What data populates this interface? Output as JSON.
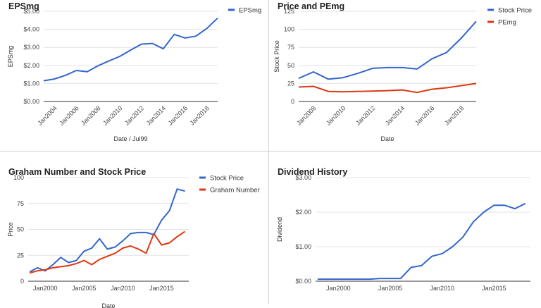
{
  "chart_data": [
    {
      "type": "line",
      "title": "EPSmg",
      "xlabel": "Date / Jul99",
      "ylabel": "EPSmg",
      "x": [
        2003,
        2004,
        2005,
        2006,
        2007,
        2008,
        2009,
        2010,
        2011,
        2012,
        2013,
        2014,
        2015,
        2016,
        2017,
        2018,
        2019
      ],
      "series": [
        {
          "name": "EPSmg",
          "color": "#3366cc",
          "values": [
            1.15,
            1.25,
            1.45,
            1.72,
            1.65,
            1.98,
            2.25,
            2.5,
            2.85,
            3.18,
            3.22,
            2.92,
            3.72,
            3.52,
            3.62,
            4.05,
            4.62
          ]
        }
      ],
      "ylim": [
        0,
        5
      ],
      "y_ticks": [
        {
          "value": 0,
          "label": "$0.00"
        },
        {
          "value": 1,
          "label": "$1.00"
        },
        {
          "value": 2,
          "label": "$2.00"
        },
        {
          "value": 3,
          "label": "$3.00"
        },
        {
          "value": 4,
          "label": "$4.00"
        },
        {
          "value": 5,
          "label": "$5.00"
        }
      ],
      "x_ticks": [
        {
          "value": 2004,
          "label": "Jan2004"
        },
        {
          "value": 2006,
          "label": "Jan2006"
        },
        {
          "value": 2008,
          "label": "Jan2008"
        },
        {
          "value": 2010,
          "label": "Jan2010"
        },
        {
          "value": 2012,
          "label": "Jan2012"
        },
        {
          "value": 2014,
          "label": "Jan2014"
        },
        {
          "value": 2016,
          "label": "Jan2016"
        },
        {
          "value": 2018,
          "label": "Jan2018"
        }
      ],
      "xlim": [
        2003,
        2019
      ],
      "legend": "right",
      "grid": true
    },
    {
      "type": "line",
      "title": "Price and PEmg",
      "xlabel": "Date",
      "ylabel": "Stock Price",
      "x": [
        2007,
        2008,
        2009,
        2010,
        2011,
        2012,
        2013,
        2014,
        2015,
        2016,
        2017,
        2018,
        2019
      ],
      "series": [
        {
          "name": "Stock Price",
          "color": "#3366cc",
          "values": [
            32,
            41,
            31,
            33,
            39,
            46,
            47,
            47,
            45,
            59,
            68,
            88,
            111
          ]
        },
        {
          "name": "PEmg",
          "color": "#dc3912",
          "values": [
            20,
            21,
            14,
            13.5,
            14,
            14.5,
            15,
            16,
            12.5,
            17,
            19,
            22,
            25
          ]
        }
      ],
      "ylim": [
        0,
        125
      ],
      "y_ticks": [
        {
          "value": 0,
          "label": "0"
        },
        {
          "value": 25,
          "label": "25"
        },
        {
          "value": 50,
          "label": "50"
        },
        {
          "value": 75,
          "label": "75"
        },
        {
          "value": 100,
          "label": "100"
        },
        {
          "value": 125,
          "label": "125"
        }
      ],
      "x_ticks": [
        {
          "value": 2008,
          "label": "Jan2008"
        },
        {
          "value": 2010,
          "label": "Jan2010"
        },
        {
          "value": 2012,
          "label": "Jan2012"
        },
        {
          "value": 2014,
          "label": "Jan2014"
        },
        {
          "value": 2016,
          "label": "Jan2016"
        },
        {
          "value": 2018,
          "label": "Jan2018"
        }
      ],
      "xlim": [
        2007,
        2019
      ],
      "legend": "right",
      "grid": true
    },
    {
      "type": "line",
      "title": "Graham Number and Stock Price",
      "xlabel": "Date",
      "ylabel": "Price",
      "x": [
        1998,
        1999,
        2000,
        2001,
        2002,
        2003,
        2004,
        2005,
        2006,
        2007,
        2008,
        2009,
        2010,
        2011,
        2012,
        2013,
        2014,
        2015,
        2016,
        2017,
        2018
      ],
      "series": [
        {
          "name": "Stock Price",
          "color": "#3366cc",
          "values": [
            9,
            13,
            10,
            16,
            23,
            18,
            20,
            29,
            32,
            41,
            31,
            33,
            39,
            46,
            47,
            47,
            45,
            59,
            68,
            89,
            87
          ]
        },
        {
          "name": "Graham Number",
          "color": "#dc3912",
          "values": [
            8,
            10,
            11,
            13,
            14,
            15,
            17,
            20,
            16,
            21,
            24,
            27,
            32,
            34,
            31,
            27,
            46,
            35,
            37,
            43,
            48
          ]
        }
      ],
      "ylim": [
        0,
        100
      ],
      "y_ticks": [
        {
          "value": 0,
          "label": "0"
        },
        {
          "value": 25,
          "label": "25"
        },
        {
          "value": 50,
          "label": "50"
        },
        {
          "value": 75,
          "label": "75"
        },
        {
          "value": 100,
          "label": "100"
        }
      ],
      "x_ticks": [
        {
          "value": 2000,
          "label": "Jan2000"
        },
        {
          "value": 2005,
          "label": "Jan2005"
        },
        {
          "value": 2010,
          "label": "Jan2010"
        },
        {
          "value": 2015,
          "label": "Jan2015"
        }
      ],
      "xlim": [
        1997.8,
        2018.5
      ],
      "legend": "right",
      "grid": true
    },
    {
      "type": "line",
      "title": "Dividend History",
      "xlabel": "",
      "ylabel": "Dividend",
      "x": [
        1998,
        1999,
        2000,
        2001,
        2002,
        2003,
        2004,
        2005,
        2006,
        2007,
        2008,
        2009,
        2010,
        2011,
        2012,
        2013,
        2014,
        2015,
        2016,
        2017,
        2018
      ],
      "series": [
        {
          "name": "",
          "color": "#3366cc",
          "values": [
            0.06,
            0.06,
            0.06,
            0.06,
            0.06,
            0.06,
            0.08,
            0.08,
            0.08,
            0.4,
            0.45,
            0.72,
            0.8,
            1.0,
            1.28,
            1.72,
            2.0,
            2.2,
            2.2,
            2.1,
            2.25
          ]
        }
      ],
      "ylim": [
        0,
        3
      ],
      "y_ticks": [
        {
          "value": 0,
          "label": "$0.00"
        },
        {
          "value": 1,
          "label": "$1.00"
        },
        {
          "value": 2,
          "label": "$2.00"
        },
        {
          "value": 3,
          "label": "$3.00"
        }
      ],
      "x_ticks": [
        {
          "value": 2000,
          "label": "Jan2000"
        },
        {
          "value": 2005,
          "label": "Jan2005"
        },
        {
          "value": 2010,
          "label": "Jan2010"
        },
        {
          "value": 2015,
          "label": "Jan2015"
        }
      ],
      "xlim": [
        1997.8,
        2018.5
      ],
      "legend": "none",
      "grid": true
    }
  ]
}
